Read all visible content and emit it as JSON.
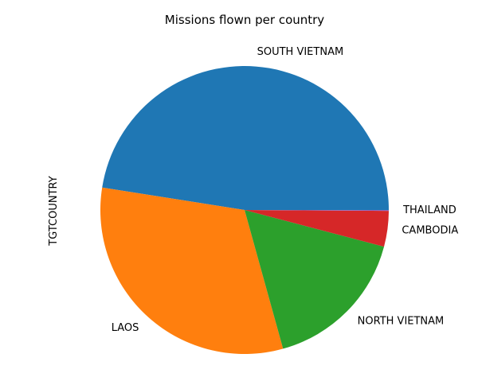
{
  "chart_data": {
    "type": "pie",
    "title": "Missions flown per country",
    "ylabel": "TGTCOUNTRY",
    "categories": [
      "SOUTH VIETNAM",
      "LAOS",
      "NORTH VIETNAM",
      "CAMBODIA",
      "THAILAND"
    ],
    "values": [
      47.5,
      31.8,
      16.6,
      4.0,
      0.1
    ],
    "colors": [
      "#1f77b4",
      "#ff7f0e",
      "#2ca02c",
      "#d62728",
      "#9467bd"
    ],
    "start_angle_deg": 0,
    "direction": "counterclockwise",
    "legend": "none"
  }
}
